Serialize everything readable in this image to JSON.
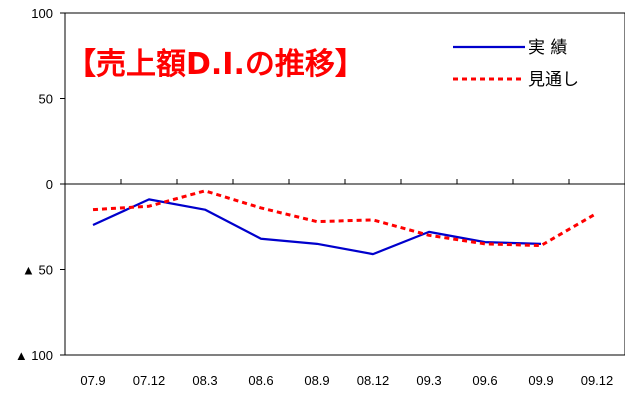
{
  "chart_data": {
    "type": "line",
    "title": "【売上額D.I.の推移】",
    "categories": [
      "07.9",
      "07.12",
      "08.3",
      "08.6",
      "08.9",
      "08.12",
      "09.3",
      "09.6",
      "09.9",
      "09.12"
    ],
    "ylim": [
      -100,
      100
    ],
    "yticks": [
      100,
      50,
      0,
      -50,
      -100
    ],
    "ytick_labels": [
      "100",
      "50",
      "0",
      "▲ 50",
      "▲ 100"
    ],
    "legend_position": "top-right",
    "grid": false,
    "series": [
      {
        "name": "実 績",
        "color": "#0000cc",
        "style": "solid",
        "values": [
          -24,
          -9,
          -15,
          -32,
          -35,
          -41,
          -28,
          -34,
          -35,
          null
        ]
      },
      {
        "name": "見通し",
        "color": "#ff0000",
        "style": "dotted",
        "values": [
          -15,
          -13,
          -4,
          -14,
          -22,
          -21,
          -30,
          -35,
          -36,
          -17
        ]
      }
    ]
  }
}
